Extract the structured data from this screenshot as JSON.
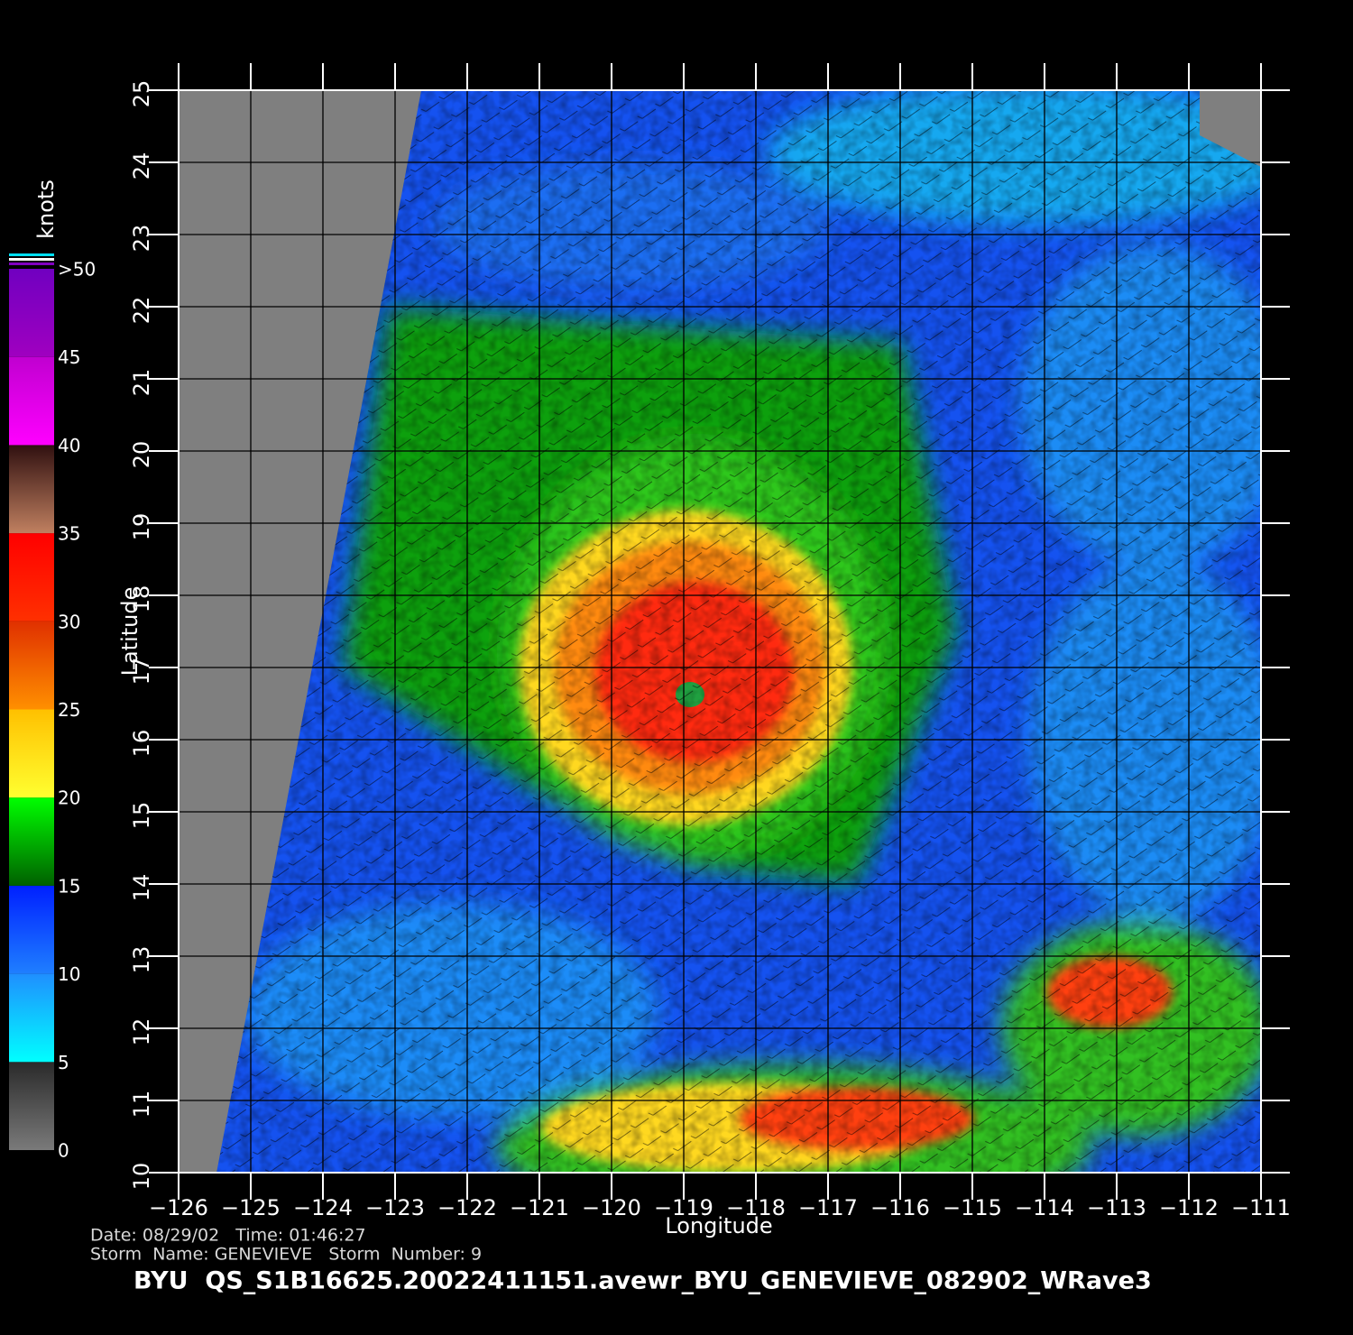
{
  "map": {
    "title": "BYU  QS_S1B16625.20022411151.avewr_BYU_GENEVIEVE_082902_WRave3",
    "date_line": "Date: 08/29/02   Time: 01:46:27",
    "storm_line": "Storm  Name: GENEVIEVE   Storm  Number: 9",
    "x_label": "Longitude",
    "y_label": "Latitude",
    "xlim": [
      -126,
      -111
    ],
    "ylim": [
      10,
      25
    ],
    "xticks": [
      {
        "value": -126,
        "label": "−126"
      },
      {
        "value": -125,
        "label": "−125"
      },
      {
        "value": -124,
        "label": "−124"
      },
      {
        "value": -123,
        "label": "−123"
      },
      {
        "value": -122,
        "label": "−122"
      },
      {
        "value": -121,
        "label": "−121"
      },
      {
        "value": -120,
        "label": "−120"
      },
      {
        "value": -119,
        "label": "−119"
      },
      {
        "value": -118,
        "label": "−118"
      },
      {
        "value": -117,
        "label": "−117"
      },
      {
        "value": -116,
        "label": "−116"
      },
      {
        "value": -115,
        "label": "−115"
      },
      {
        "value": -114,
        "label": "−114"
      },
      {
        "value": -113,
        "label": "−113"
      },
      {
        "value": -112,
        "label": "−112"
      },
      {
        "value": -111,
        "label": "−111"
      }
    ],
    "yticks": [
      10,
      11,
      12,
      13,
      14,
      15,
      16,
      17,
      18,
      19,
      20,
      21,
      22,
      23,
      24,
      25
    ],
    "grid": true,
    "colorbar": {
      "label": "knots",
      "lim": [
        0,
        50
      ],
      "ticks": [
        0,
        5,
        10,
        15,
        20,
        25,
        30,
        35,
        40,
        45,
        {
          "value": 50,
          "label": ">50"
        }
      ],
      "colors": [
        [
          "#7a7a7a",
          "#2a2a2a"
        ],
        [
          "#00ffff",
          "#1f8fff"
        ],
        [
          "#1f7fff",
          "#0020ff"
        ],
        [
          "#006000",
          "#00ff00"
        ],
        [
          "#ffff30",
          "#ffc000"
        ],
        [
          "#ff9000",
          "#e03000"
        ],
        [
          "#ff3000",
          "#ff0000"
        ],
        [
          "#c08060",
          "#301010"
        ],
        [
          "#ff00ff",
          "#c000d0"
        ],
        [
          "#a000c0",
          "#7000c0"
        ]
      ]
    }
  }
}
